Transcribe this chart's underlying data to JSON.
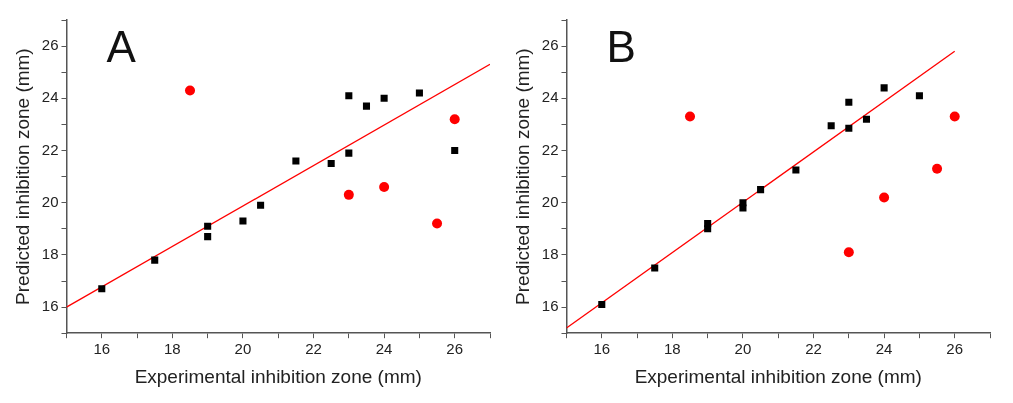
{
  "chart_data": [
    {
      "type": "scatter",
      "annotations": [
        "A"
      ],
      "xlabel": "Experimental inhibition zone (mm)",
      "ylabel": "Predicted inhibition zone (mm)",
      "xlim": [
        15,
        27
      ],
      "ylim": [
        15,
        27
      ],
      "xticks": [
        {
          "value": 15,
          "label": null
        },
        16,
        {
          "value": 17,
          "label": null
        },
        18,
        {
          "value": 19,
          "label": null
        },
        20,
        {
          "value": 21,
          "label": null
        },
        22,
        {
          "value": 23,
          "label": null
        },
        24,
        {
          "value": 25,
          "label": null
        },
        26,
        {
          "value": 27,
          "label": null
        }
      ],
      "yticks": [
        {
          "value": 15,
          "label": null
        },
        16,
        {
          "value": 17,
          "label": null
        },
        18,
        {
          "value": 19,
          "label": null
        },
        20,
        {
          "value": 21,
          "label": null
        },
        22,
        {
          "value": 23,
          "label": null
        },
        24,
        {
          "value": 25,
          "label": null
        },
        26,
        {
          "value": 27,
          "label": null
        }
      ],
      "series": [
        {
          "color": "#000000",
          "marker": "square",
          "x": [
            16,
            17.5,
            19,
            19,
            20,
            20.5,
            21.5,
            22.5,
            23,
            23,
            23.5,
            24,
            25,
            26
          ],
          "values": [
            16.7,
            17.8,
            19.1,
            18.7,
            19.3,
            19.9,
            21.6,
            21.5,
            21.9,
            24.1,
            23.7,
            24.0,
            24.2,
            22.0
          ]
        },
        {
          "color": "#ff0000",
          "marker": "circle",
          "x": [
            18.5,
            23,
            24,
            25.5,
            26
          ],
          "values": [
            24.3,
            20.3,
            20.6,
            19.2,
            23.2
          ]
        },
        {
          "type": "line",
          "color": "#ff0000",
          "marker": "none",
          "x": [
            15,
            27
          ],
          "values": [
            16.0,
            25.3
          ]
        }
      ]
    },
    {
      "type": "scatter",
      "annotations": [
        "B"
      ],
      "xlabel": "Experimental inhibition zone (mm)",
      "ylabel": "Predicted inhibition zone (mm)",
      "xlim": [
        15,
        27
      ],
      "ylim": [
        15,
        27
      ],
      "xticks": [
        {
          "value": 15,
          "label": null
        },
        16,
        {
          "value": 17,
          "label": null
        },
        18,
        {
          "value": 19,
          "label": null
        },
        20,
        {
          "value": 21,
          "label": null
        },
        22,
        {
          "value": 23,
          "label": null
        },
        24,
        {
          "value": 25,
          "label": null
        },
        26,
        {
          "value": 27,
          "label": null
        }
      ],
      "yticks": [
        {
          "value": 15,
          "label": null
        },
        16,
        {
          "value": 17,
          "label": null
        },
        18,
        {
          "value": 19,
          "label": null
        },
        20,
        {
          "value": 21,
          "label": null
        },
        22,
        {
          "value": 23,
          "label": null
        },
        24,
        {
          "value": 25,
          "label": null
        },
        26,
        {
          "value": 27,
          "label": null
        }
      ],
      "series": [
        {
          "color": "#000000",
          "marker": "square",
          "x": [
            16,
            17.5,
            19,
            19,
            20,
            20,
            20.5,
            21.5,
            22.5,
            23,
            23,
            23.5,
            24,
            25
          ],
          "values": [
            16.1,
            17.5,
            19.2,
            19.0,
            20.0,
            19.8,
            20.5,
            21.25,
            22.95,
            23.85,
            22.85,
            23.2,
            24.4,
            24.1
          ]
        },
        {
          "color": "#ff0000",
          "marker": "circle",
          "x": [
            18.5,
            23,
            24,
            25.5,
            26
          ],
          "values": [
            23.3,
            18.1,
            20.2,
            21.3,
            23.3
          ]
        },
        {
          "type": "line",
          "color": "#ff0000",
          "marker": "none",
          "x": [
            15,
            26
          ],
          "values": [
            15.2,
            25.8
          ]
        }
      ]
    }
  ]
}
